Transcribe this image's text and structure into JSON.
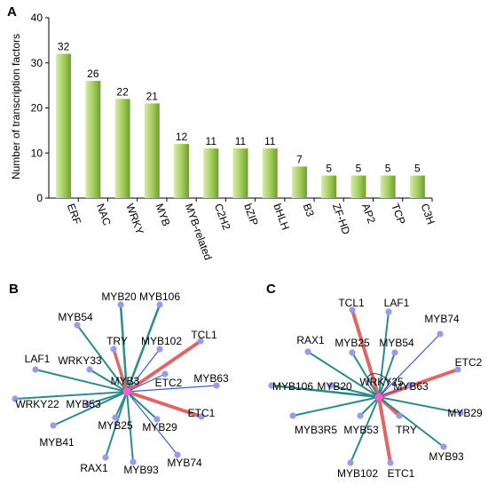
{
  "panels": {
    "a": "A",
    "b": "B",
    "c": "C"
  },
  "chart_data": [
    {
      "type": "bar",
      "ylabel": "Number of transcription factors",
      "ylim": [
        0,
        40
      ],
      "yticks": [
        "0",
        "10",
        "20",
        "30",
        "40"
      ],
      "categories": [
        "ERF",
        "NAC",
        "WRKY",
        "MYB",
        "MYB-related",
        "C2H2",
        "bZIP",
        "bHLH",
        "B3",
        "ZF-HD",
        "AP2",
        "TCP",
        "C3H"
      ],
      "values": [
        32,
        26,
        22,
        21,
        12,
        11,
        11,
        11,
        7,
        5,
        5,
        5,
        5
      ],
      "value_labels": [
        "32",
        "26",
        "22",
        "21",
        "12",
        "11",
        "11",
        "11",
        "7",
        "5",
        "5",
        "5",
        "5"
      ],
      "colors": {
        "bar_light": "#cfe6a0",
        "bar_dark": "#7fae3a"
      }
    },
    {
      "type": "network",
      "hub": "MYB3",
      "hub_color": "#ff5ad6",
      "node_color": "#9999ee",
      "nodes": [
        "MYB20",
        "MYB106",
        "MYB54",
        "TRY",
        "MYB102",
        "TCL1",
        "LAF1",
        "WRKY33",
        "MYB3",
        "ETC2",
        "MYB63",
        "WRKY22",
        "MYB53",
        "ETC1",
        "MYB25",
        "MYB29",
        "MYB41",
        "RAX1",
        "MYB93",
        "MYB74"
      ],
      "edge_colors": {
        "teal": "#2e8b8b",
        "blue": "#3a5fcd",
        "red": "#e06666"
      }
    },
    {
      "type": "network",
      "hub": "WRKY25",
      "hub_color": "#ff5ad6",
      "node_color": "#9999ee",
      "nodes": [
        "TCL1",
        "LAF1",
        "MYB74",
        "RAX1",
        "MYB25",
        "MYB54",
        "ETC2",
        "MYB106",
        "MYB20",
        "WRKY25",
        "MYB63",
        "MYB29",
        "MYB3R5",
        "MYB53",
        "TRY",
        "MYB93",
        "MYB102",
        "ETC1"
      ],
      "edge_colors": {
        "teal": "#2e8b8b",
        "blue": "#3a5fcd",
        "red": "#e06666"
      }
    }
  ]
}
